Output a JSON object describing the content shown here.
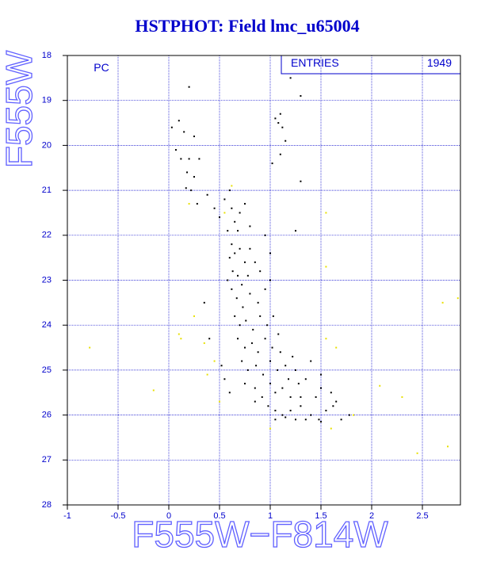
{
  "chart_data": {
    "type": "scatter",
    "title": "HSTPHOT: Field lmc_u65004",
    "panel_label": "PC",
    "stats": {
      "label": "ENTRIES",
      "value": 1949
    },
    "x_label": "F555W−F814W",
    "y_label": "F555W",
    "xlim": [
      -1,
      2.875
    ],
    "ylim": [
      28,
      18
    ],
    "xticks": [
      -1,
      -0.5,
      0,
      0.5,
      1,
      1.5,
      2,
      2.5
    ],
    "yticks": [
      18,
      19,
      20,
      21,
      22,
      23,
      24,
      25,
      26,
      27,
      28
    ],
    "grid": true,
    "series": [
      {
        "color": "#000000",
        "x": [
          0.03,
          0.1,
          0.2,
          0.15,
          0.25,
          0.07,
          0.12,
          0.2,
          0.3,
          0.18,
          0.25,
          0.17,
          0.22,
          0.38,
          0.28,
          0.45,
          0.55,
          0.5,
          0.6,
          0.62,
          0.65,
          0.58,
          0.68,
          0.7,
          0.75,
          0.8,
          1.05,
          1.08,
          1.1,
          1.12,
          1.2,
          1.15,
          1.02,
          1.1,
          1.3,
          1.25,
          1.3,
          0.62,
          0.65,
          0.7,
          0.75,
          0.8,
          0.6,
          0.63,
          0.68,
          0.72,
          0.78,
          0.85,
          0.9,
          0.62,
          0.67,
          0.73,
          0.8,
          0.88,
          0.95,
          1.0,
          0.65,
          0.7,
          0.76,
          0.83,
          0.9,
          0.97,
          1.03,
          0.68,
          0.75,
          0.82,
          0.88,
          0.95,
          1.02,
          1.08,
          0.72,
          0.78,
          0.86,
          0.93,
          1.0,
          1.07,
          1.15,
          1.22,
          0.75,
          0.85,
          0.92,
          1.0,
          1.05,
          1.12,
          1.2,
          1.28,
          1.35,
          0.98,
          1.05,
          1.12,
          1.2,
          1.3,
          1.4,
          1.48,
          1.55,
          1.62,
          1.7,
          1.78,
          1.45,
          1.5,
          1.6,
          1.65,
          1.05,
          1.35,
          1.5,
          0.6,
          0.55,
          0.4,
          0.35,
          0.52,
          1.1,
          1.25,
          1.4,
          1.5,
          0.95,
          1.0,
          0.58,
          0.85,
          1.15,
          1.25,
          1.3,
          1.18
        ],
        "y": [
          19.6,
          19.45,
          18.7,
          19.7,
          19.8,
          20.1,
          20.3,
          20.3,
          20.3,
          20.6,
          20.7,
          20.95,
          21.0,
          21.1,
          21.3,
          21.4,
          21.2,
          21.6,
          21.0,
          21.4,
          21.7,
          21.9,
          21.9,
          21.5,
          21.3,
          21.8,
          19.4,
          19.5,
          19.3,
          19.6,
          18.5,
          19.9,
          20.4,
          20.2,
          20.8,
          21.9,
          18.9,
          22.2,
          22.4,
          22.3,
          22.6,
          22.3,
          22.5,
          22.8,
          22.9,
          23.1,
          22.9,
          22.6,
          22.8,
          23.2,
          23.4,
          23.6,
          23.3,
          23.5,
          23.2,
          23.0,
          23.8,
          24.0,
          23.9,
          24.1,
          23.8,
          24.0,
          23.8,
          24.3,
          24.5,
          24.4,
          24.6,
          24.3,
          24.5,
          24.2,
          24.8,
          25.0,
          24.9,
          25.1,
          24.8,
          25.0,
          24.9,
          24.7,
          25.3,
          25.4,
          25.6,
          25.3,
          25.5,
          25.4,
          25.6,
          25.3,
          25.2,
          25.8,
          25.9,
          26.0,
          25.9,
          25.8,
          26.0,
          26.1,
          25.9,
          25.8,
          26.1,
          26.0,
          25.6,
          25.4,
          25.5,
          25.7,
          26.1,
          26.1,
          26.15,
          25.5,
          25.2,
          24.3,
          23.5,
          24.9,
          24.6,
          25.0,
          24.8,
          25.1,
          22.0,
          22.4,
          23.0,
          25.7,
          26.05,
          26.1,
          25.6,
          25.2
        ]
      },
      {
        "color": "#e8e000",
        "x": [
          -0.78,
          -0.15,
          0.1,
          0.12,
          0.25,
          0.35,
          0.38,
          0.45,
          0.55,
          0.62,
          0.2,
          0.5,
          1.55,
          1.55,
          1.65,
          1.55,
          2.08,
          2.3,
          2.45,
          2.7,
          2.75,
          2.85,
          1.82,
          1.0,
          1.6
        ],
        "y": [
          24.5,
          25.45,
          24.2,
          24.3,
          23.8,
          24.4,
          25.1,
          24.8,
          21.5,
          20.9,
          21.3,
          25.7,
          21.5,
          22.7,
          24.5,
          24.3,
          25.35,
          25.6,
          26.85,
          23.5,
          26.7,
          23.4,
          26.0,
          26.3,
          26.3
        ]
      }
    ]
  }
}
